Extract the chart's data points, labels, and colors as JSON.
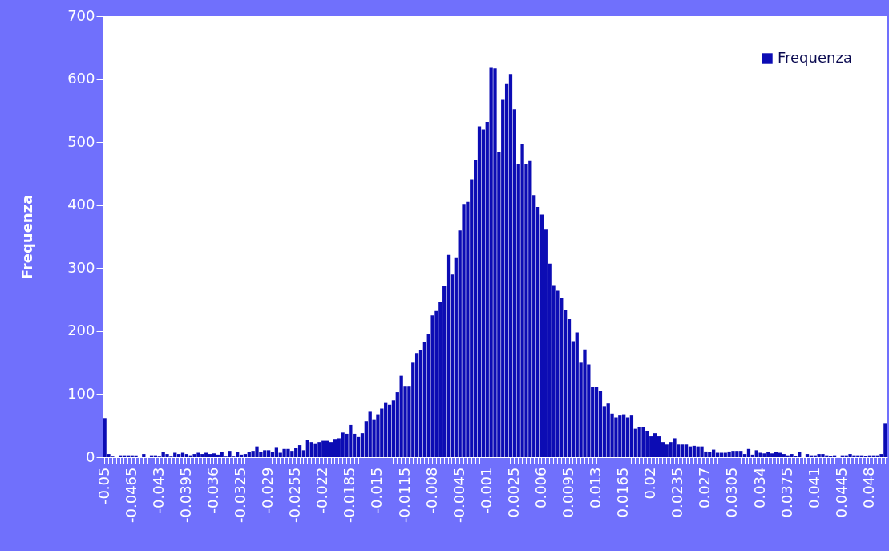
{
  "chart_data": {
    "type": "bar",
    "ylabel": "Frequenza",
    "categories": [
      "-0.05",
      null,
      null,
      null,
      null,
      null,
      null,
      "-0.0465",
      null,
      null,
      null,
      null,
      null,
      null,
      "-0.043",
      null,
      null,
      null,
      null,
      null,
      null,
      "-0.0395",
      null,
      null,
      null,
      null,
      null,
      null,
      "-0.036",
      null,
      null,
      null,
      null,
      null,
      null,
      "-0.0325",
      null,
      null,
      null,
      null,
      null,
      null,
      "-0.029",
      null,
      null,
      null,
      null,
      null,
      null,
      "-0.0255",
      null,
      null,
      null,
      null,
      null,
      null,
      "-0.022",
      null,
      null,
      null,
      null,
      null,
      null,
      "-0.0185",
      null,
      null,
      null,
      null,
      null,
      null,
      "-0.015",
      null,
      null,
      null,
      null,
      null,
      null,
      "-0.0115",
      null,
      null,
      null,
      null,
      null,
      null,
      "-0.008",
      null,
      null,
      null,
      null,
      null,
      null,
      "-0.0045",
      null,
      null,
      null,
      null,
      null,
      null,
      "-0.001",
      null,
      null,
      null,
      null,
      null,
      null,
      "0.0025",
      null,
      null,
      null,
      null,
      null,
      null,
      "0.006",
      null,
      null,
      null,
      null,
      null,
      null,
      "0.0095",
      null,
      null,
      null,
      null,
      null,
      null,
      "0.013",
      null,
      null,
      null,
      null,
      null,
      null,
      "0.0165",
      null,
      null,
      null,
      null,
      null,
      null,
      "0.02",
      null,
      null,
      null,
      null,
      null,
      null,
      "0.0235",
      null,
      null,
      null,
      null,
      null,
      null,
      "0.027",
      null,
      null,
      null,
      null,
      null,
      null,
      "0.0305",
      null,
      null,
      null,
      null,
      null,
      null,
      "0.034",
      null,
      null,
      null,
      null,
      null,
      null,
      "0.0375",
      null,
      null,
      null,
      null,
      null,
      null,
      "0.041",
      null,
      null,
      null,
      null,
      null,
      null,
      "0.0445",
      null,
      null,
      null,
      null,
      null,
      null,
      "0.048",
      null,
      null,
      null,
      null
    ],
    "series": [
      {
        "name": "Frequenza",
        "color": "#0c0cb4",
        "values": [
          62,
          5,
          1,
          0,
          3,
          3,
          3,
          3,
          3,
          0,
          5,
          0,
          3,
          3,
          1,
          8,
          5,
          1,
          7,
          5,
          7,
          5,
          3,
          5,
          7,
          5,
          7,
          5,
          6,
          4,
          8,
          1,
          10,
          1,
          8,
          4,
          5,
          8,
          10,
          17,
          8,
          11,
          11,
          8,
          16,
          7,
          13,
          13,
          10,
          14,
          19,
          11,
          27,
          24,
          22,
          24,
          26,
          26,
          24,
          29,
          30,
          39,
          37,
          51,
          37,
          32,
          38,
          57,
          72,
          59,
          68,
          77,
          87,
          83,
          90,
          103,
          129,
          113,
          113,
          151,
          165,
          170,
          183,
          196,
          225,
          232,
          246,
          272,
          321,
          290,
          316,
          360,
          402,
          405,
          441,
          472,
          525,
          520,
          532,
          618,
          617,
          484,
          567,
          592,
          608,
          552,
          465,
          497,
          465,
          470,
          416,
          397,
          385,
          361,
          307,
          273,
          264,
          253,
          233,
          219,
          184,
          198,
          151,
          171,
          147,
          112,
          111,
          105,
          81,
          85,
          69,
          63,
          66,
          68,
          63,
          66,
          45,
          48,
          48,
          41,
          33,
          38,
          33,
          24,
          20,
          24,
          30,
          20,
          20,
          20,
          17,
          18,
          17,
          17,
          9,
          8,
          12,
          7,
          7,
          7,
          9,
          10,
          10,
          10,
          5,
          13,
          4,
          11,
          7,
          6,
          8,
          6,
          8,
          7,
          5,
          3,
          5,
          2,
          8,
          0,
          5,
          3,
          3,
          5,
          5,
          3,
          2,
          3,
          0,
          3,
          3,
          5,
          3,
          3,
          3,
          2,
          3,
          3,
          3,
          5,
          53
        ]
      }
    ],
    "ylim": [
      0,
      700
    ],
    "yticks": [
      0,
      100,
      200,
      300,
      400,
      500,
      600,
      700
    ],
    "grid": false,
    "legend": "top right"
  }
}
